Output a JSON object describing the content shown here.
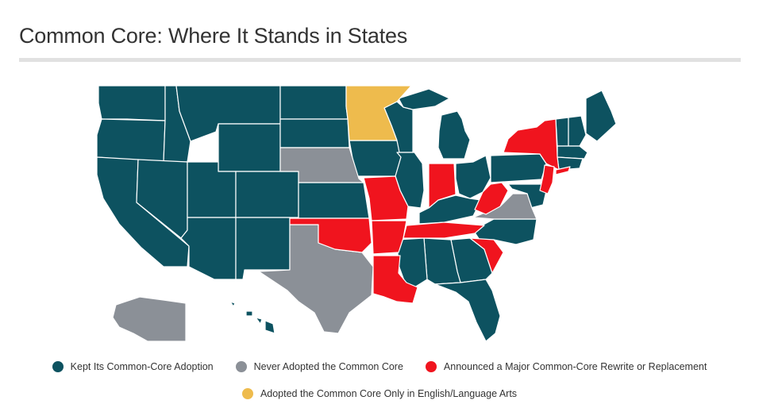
{
  "title": "Common Core: Where It Stands in States",
  "colors": {
    "kept": "#0d5260",
    "never": "#8b9097",
    "announced": "#f0141e",
    "ela_only": "#eebb4d",
    "rule": "#e1e1e1"
  },
  "legend": [
    {
      "key": "kept",
      "label": "Kept Its Common-Core Adoption"
    },
    {
      "key": "never",
      "label": "Never Adopted the Common Core"
    },
    {
      "key": "announced",
      "label": "Announced a Major Common-Core Rewrite or Replacement"
    },
    {
      "key": "ela_only",
      "label": "Adopted the Common Core Only in English/Language Arts"
    }
  ]
}
